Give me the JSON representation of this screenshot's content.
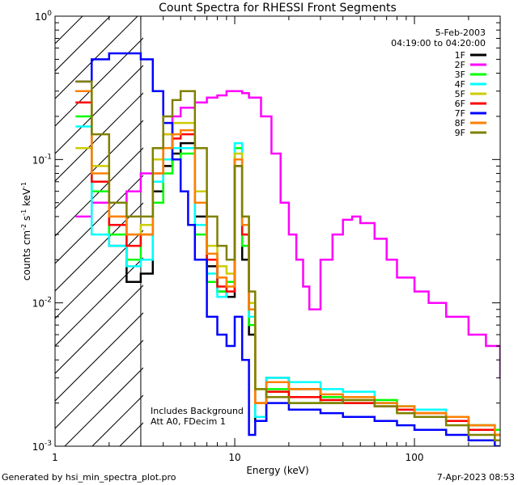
{
  "chart_data": {
    "type": "line",
    "title": "Count Spectra for RHESSI Front Segments",
    "xlabel": "Energy (keV)",
    "ylabel": "counts cm^-2 s^-1 keV^-1",
    "ylabel_parts": {
      "base": "counts cm",
      "e1": "-2",
      "mid": " s",
      "e2": "-1",
      "end": " keV",
      "e3": "-1"
    },
    "x_scale": "log",
    "y_scale": "log",
    "xlim": [
      1,
      300
    ],
    "ylim": [
      0.001,
      1
    ],
    "x_ticks": [
      {
        "value": 1,
        "label": "1"
      },
      {
        "value": 10,
        "label": "10"
      },
      {
        "value": 100,
        "label": "100"
      }
    ],
    "y_ticks": [
      {
        "value": 1,
        "base": "10",
        "exp": "0"
      },
      {
        "value": 0.1,
        "base": "10",
        "exp": "-1"
      },
      {
        "value": 0.01,
        "base": "10",
        "exp": "-2"
      },
      {
        "value": 0.001,
        "base": "10",
        "exp": "-3"
      }
    ],
    "attenuator_region": {
      "from": 1,
      "to": 3
    },
    "legend": {
      "position": "top-right",
      "date": "5-Feb-2003",
      "time_range": "04:19:00 to 04:20:00"
    },
    "annotations": [
      "Includes Background",
      "Att A0, FDecim 1"
    ],
    "series": [
      {
        "name": "1F",
        "color": "#000000",
        "x": [
          1.3,
          1.6,
          2,
          2.5,
          3,
          3.5,
          4,
          4.5,
          5,
          6,
          7,
          8,
          9,
          10,
          11,
          12,
          13,
          15,
          20,
          30,
          40,
          60,
          80,
          100,
          150,
          200,
          280
        ],
        "y": [
          0.3,
          0.05,
          0.025,
          0.014,
          0.016,
          0.06,
          0.09,
          0.11,
          0.13,
          0.04,
          0.018,
          0.012,
          0.011,
          0.09,
          0.02,
          0.006,
          0.0015,
          0.003,
          0.0025,
          0.002,
          0.0022,
          0.002,
          0.0018,
          0.0017,
          0.0015,
          0.0014,
          0.0012
        ]
      },
      {
        "name": "2F",
        "color": "#ff00ff",
        "x": [
          1.3,
          1.6,
          2,
          2.5,
          3,
          3.5,
          4,
          4.5,
          5,
          6,
          7,
          8,
          9,
          10,
          11,
          12,
          14,
          16,
          18,
          20,
          22,
          24,
          26,
          30,
          35,
          40,
          45,
          50,
          60,
          70,
          80,
          100,
          120,
          150,
          200,
          250,
          300
        ],
        "y": [
          0.04,
          0.05,
          0.05,
          0.06,
          0.08,
          0.1,
          0.15,
          0.2,
          0.23,
          0.25,
          0.27,
          0.28,
          0.3,
          0.3,
          0.29,
          0.27,
          0.2,
          0.11,
          0.05,
          0.03,
          0.02,
          0.013,
          0.009,
          0.02,
          0.03,
          0.038,
          0.04,
          0.036,
          0.028,
          0.02,
          0.015,
          0.012,
          0.01,
          0.008,
          0.006,
          0.005,
          0.003
        ]
      },
      {
        "name": "3F",
        "color": "#00ff00",
        "x": [
          1.3,
          1.6,
          2,
          2.5,
          3,
          3.5,
          4,
          4.5,
          5,
          6,
          7,
          8,
          9,
          10,
          11,
          12,
          13,
          15,
          20,
          30,
          40,
          60,
          80,
          100,
          150,
          200,
          280
        ],
        "y": [
          0.2,
          0.06,
          0.03,
          0.02,
          0.03,
          0.05,
          0.08,
          0.1,
          0.11,
          0.03,
          0.014,
          0.012,
          0.014,
          0.12,
          0.025,
          0.007,
          0.002,
          0.0025,
          0.002,
          0.0022,
          0.002,
          0.0021,
          0.0019,
          0.0016,
          0.0015,
          0.0014,
          0.0013
        ]
      },
      {
        "name": "4F",
        "color": "#00ffff",
        "x": [
          1.3,
          1.6,
          2,
          2.5,
          3,
          3.5,
          4,
          4.5,
          5,
          6,
          7,
          8,
          9,
          10,
          11,
          12,
          13,
          15,
          20,
          30,
          40,
          60,
          80,
          100,
          150,
          200,
          280
        ],
        "y": [
          0.17,
          0.03,
          0.025,
          0.018,
          0.02,
          0.07,
          0.1,
          0.12,
          0.12,
          0.035,
          0.016,
          0.011,
          0.012,
          0.13,
          0.03,
          0.008,
          0.0016,
          0.003,
          0.0028,
          0.0025,
          0.0024,
          0.002,
          0.0019,
          0.0018,
          0.0016,
          0.0013,
          0.0012
        ]
      },
      {
        "name": "5F",
        "color": "#cccc00",
        "x": [
          1.3,
          1.6,
          2,
          2.5,
          3,
          3.5,
          4,
          4.5,
          5,
          6,
          7,
          8,
          9,
          10,
          11,
          12,
          13,
          15,
          20,
          30,
          40,
          60,
          80,
          100,
          150,
          200,
          280
        ],
        "y": [
          0.12,
          0.09,
          0.04,
          0.03,
          0.035,
          0.1,
          0.15,
          0.18,
          0.18,
          0.06,
          0.025,
          0.018,
          0.016,
          0.11,
          0.04,
          0.01,
          0.0025,
          0.0024,
          0.0022,
          0.002,
          0.0021,
          0.0019,
          0.0017,
          0.0016,
          0.0015,
          0.0013,
          0.0012
        ]
      },
      {
        "name": "6F",
        "color": "#ff0000",
        "x": [
          1.3,
          1.6,
          2,
          2.5,
          3,
          3.5,
          4,
          4.5,
          5,
          6,
          7,
          8,
          9,
          10,
          11,
          12,
          13,
          15,
          20,
          30,
          40,
          60,
          80,
          100,
          150,
          200,
          280
        ],
        "y": [
          0.25,
          0.07,
          0.035,
          0.025,
          0.03,
          0.08,
          0.12,
          0.14,
          0.15,
          0.05,
          0.02,
          0.013,
          0.012,
          0.1,
          0.03,
          0.009,
          0.002,
          0.0024,
          0.0022,
          0.0021,
          0.002,
          0.0019,
          0.0018,
          0.0017,
          0.0015,
          0.0013,
          0.0012
        ]
      },
      {
        "name": "7F",
        "color": "#0000ff",
        "x": [
          1.3,
          1.6,
          2,
          2.5,
          3,
          3.5,
          4,
          4.5,
          5,
          5.5,
          6,
          7,
          8,
          9,
          10,
          11,
          12,
          13,
          15,
          20,
          30,
          40,
          60,
          80,
          100,
          150,
          200,
          280
        ],
        "y": [
          0.35,
          0.5,
          0.55,
          0.55,
          0.5,
          0.3,
          0.18,
          0.1,
          0.06,
          0.035,
          0.02,
          0.008,
          0.006,
          0.005,
          0.008,
          0.004,
          0.0012,
          0.0015,
          0.002,
          0.0018,
          0.0017,
          0.0016,
          0.0015,
          0.0014,
          0.0013,
          0.0012,
          0.0011,
          0.001
        ]
      },
      {
        "name": "8F",
        "color": "#ff8000",
        "x": [
          1.3,
          1.6,
          2,
          2.5,
          3,
          3.5,
          4,
          4.5,
          5,
          6,
          7,
          8,
          9,
          10,
          11,
          12,
          13,
          15,
          20,
          30,
          40,
          60,
          80,
          100,
          150,
          200,
          280
        ],
        "y": [
          0.3,
          0.08,
          0.04,
          0.03,
          0.03,
          0.08,
          0.12,
          0.15,
          0.16,
          0.05,
          0.022,
          0.015,
          0.013,
          0.1,
          0.035,
          0.009,
          0.002,
          0.0028,
          0.0025,
          0.0023,
          0.0022,
          0.002,
          0.0019,
          0.0017,
          0.0016,
          0.0014,
          0.0012
        ]
      },
      {
        "name": "9F",
        "color": "#808000",
        "x": [
          1.3,
          1.6,
          2,
          2.5,
          3,
          3.5,
          4,
          4.5,
          5,
          6,
          7,
          8,
          9,
          10,
          11,
          12,
          13,
          15,
          20,
          30,
          40,
          60,
          80,
          100,
          150,
          200,
          280
        ],
        "y": [
          0.35,
          0.15,
          0.05,
          0.04,
          0.04,
          0.12,
          0.2,
          0.26,
          0.3,
          0.12,
          0.04,
          0.025,
          0.02,
          0.09,
          0.04,
          0.012,
          0.0025,
          0.0022,
          0.002,
          0.002,
          0.0021,
          0.0019,
          0.0017,
          0.0016,
          0.0014,
          0.0012,
          0.0011
        ]
      }
    ]
  },
  "footer": {
    "left": "Generated by hsi_min_spectra_plot.pro",
    "right": "7-Apr-2023 08:53"
  }
}
